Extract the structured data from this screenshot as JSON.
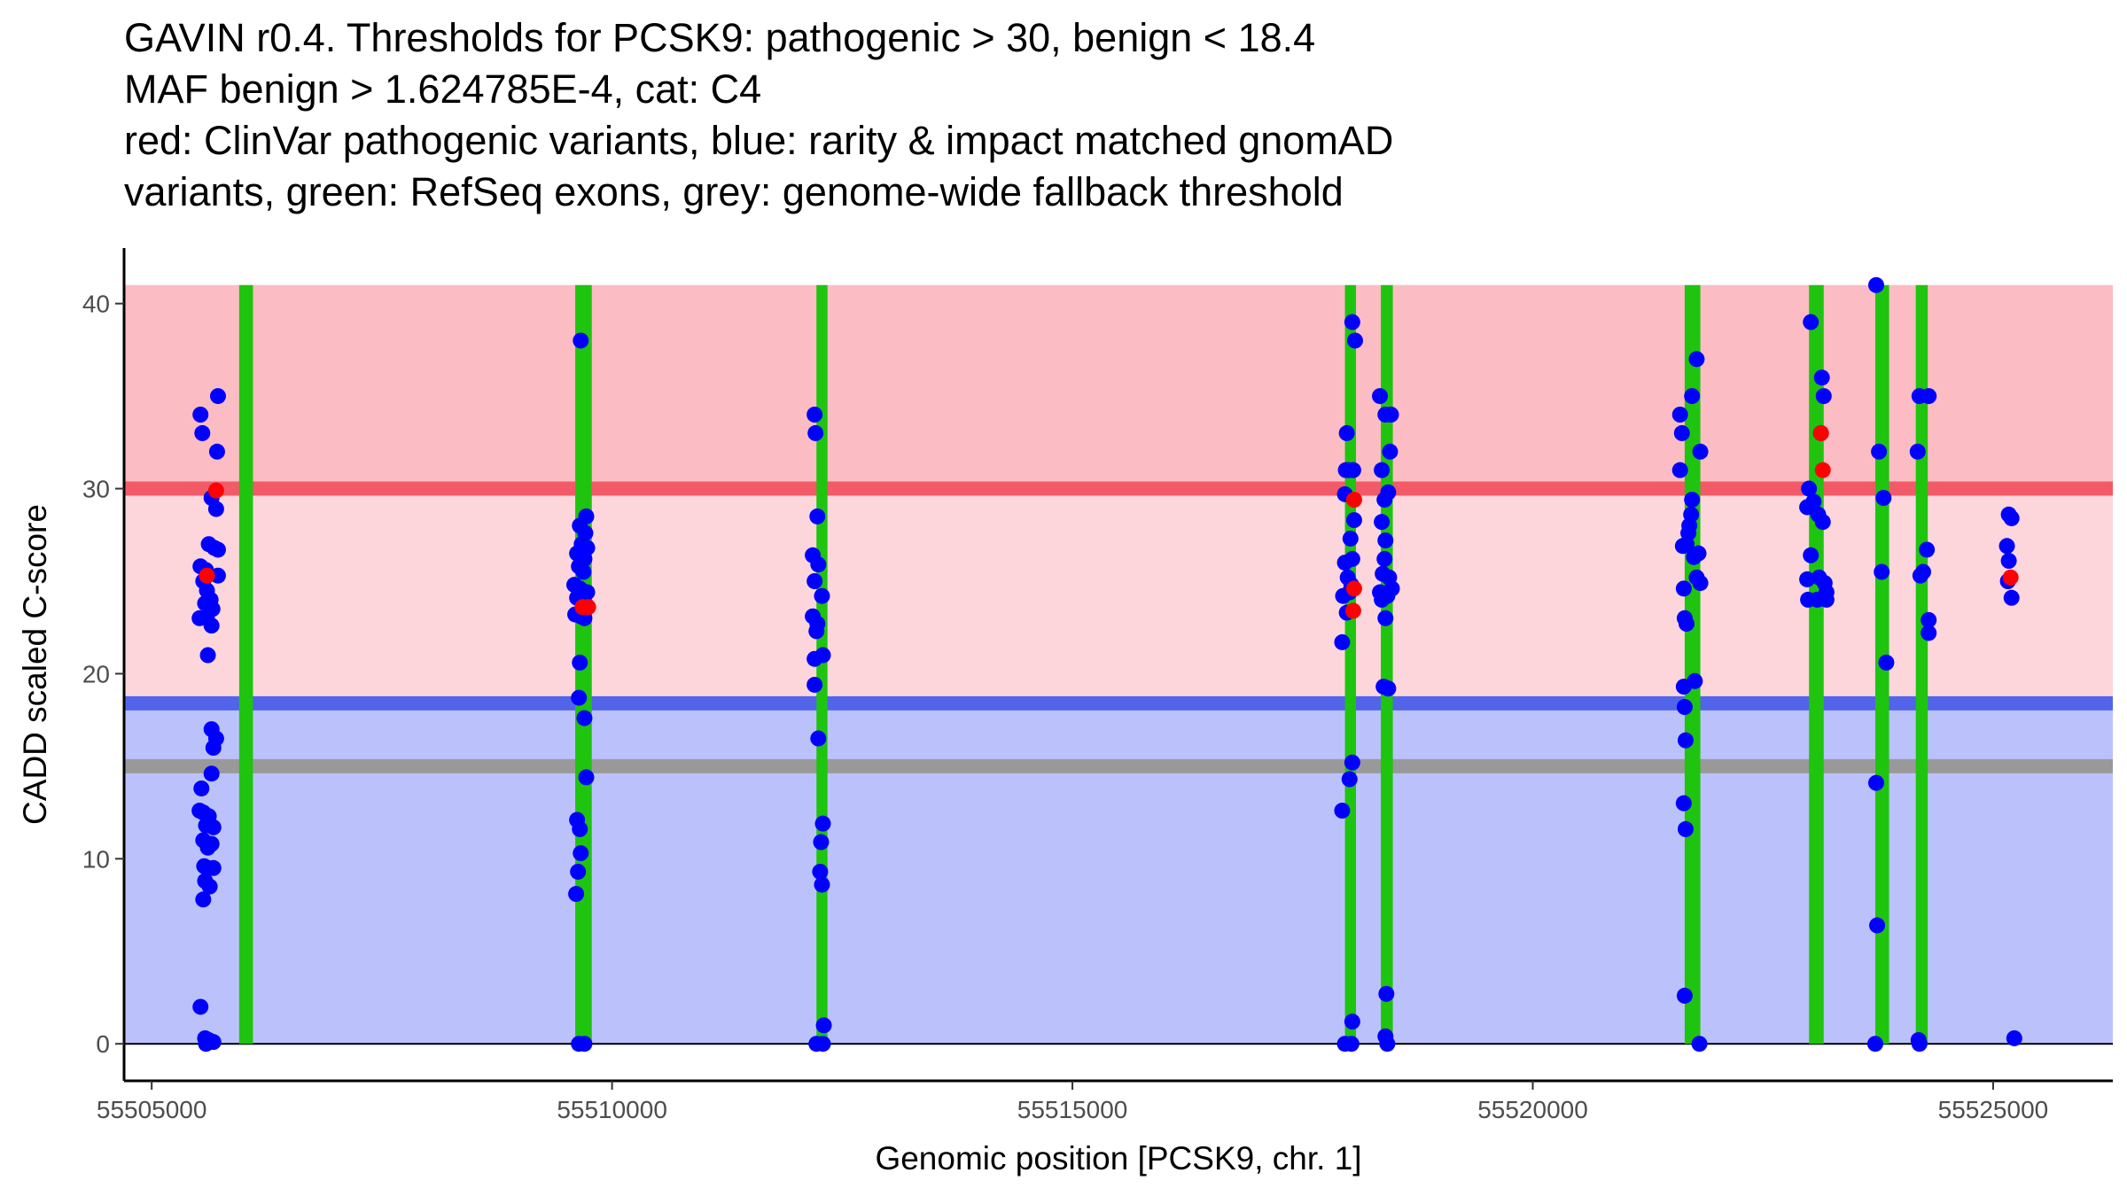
{
  "chart_data": {
    "type": "scatter",
    "title_lines": [
      "GAVIN r0.4. Thresholds for PCSK9: pathogenic > 30, benign < 18.4",
      "MAF benign > 1.624785E-4, cat: C4",
      "red: ClinVar pathogenic variants, blue: rarity & impact matched gnomAD",
      "variants, green: RefSeq exons, grey: genome-wide fallback threshold"
    ],
    "xlabel": "Genomic position [PCSK9, chr. 1]",
    "ylabel": "CADD scaled C-score",
    "xlim": [
      55504700,
      55526300
    ],
    "ylim": [
      -2,
      43
    ],
    "x_ticks": [
      55505000,
      55510000,
      55515000,
      55520000,
      55525000
    ],
    "x_tick_labels": [
      "55505000",
      "55510000",
      "55515000",
      "55520000",
      "55525000"
    ],
    "y_ticks": [
      0,
      10,
      20,
      30,
      40
    ],
    "y_tick_labels": [
      "0",
      "10",
      "20",
      "30",
      "40"
    ],
    "thresholds": {
      "pathogenic": 30,
      "benign": 18.4,
      "fallback": 15,
      "max": 41
    },
    "colors": {
      "pathogenic_zone": "#fdd6dc",
      "pathogenic_top_zone": "#fcbcc3",
      "benign_zone": "#bbc2fb",
      "pathogenic_line": "#f35a68",
      "benign_line": "#5164ea",
      "fallback_line": "#999999",
      "exon": "#1fc40f",
      "gnomad": "#0000ff",
      "clinvar": "#ff0000"
    },
    "exons": [
      [
        55505950,
        55506100
      ],
      [
        55509600,
        55509780
      ],
      [
        55512220,
        55512340
      ],
      [
        55517960,
        55518080
      ],
      [
        55518350,
        55518480
      ],
      [
        55521650,
        55521820
      ],
      [
        55523000,
        55523160
      ],
      [
        55523720,
        55523870
      ],
      [
        55524160,
        55524290
      ]
    ],
    "series": [
      {
        "name": "gnomAD variants",
        "points": [
          [
            55505530,
            34
          ],
          [
            55505550,
            33
          ],
          [
            55505720,
            35
          ],
          [
            55505710,
            32
          ],
          [
            55505650,
            29.5
          ],
          [
            55505700,
            28.9
          ],
          [
            55505620,
            27
          ],
          [
            55505680,
            26.8
          ],
          [
            55505720,
            26.7
          ],
          [
            55505530,
            25.8
          ],
          [
            55505590,
            25.6
          ],
          [
            55505720,
            25.3
          ],
          [
            55505560,
            25
          ],
          [
            55505600,
            24.5
          ],
          [
            55505640,
            24
          ],
          [
            55505580,
            23.8
          ],
          [
            55505660,
            23.5
          ],
          [
            55505520,
            23
          ],
          [
            55505600,
            23
          ],
          [
            55505650,
            22.6
          ],
          [
            55505610,
            21
          ],
          [
            55505650,
            17
          ],
          [
            55505700,
            16.5
          ],
          [
            55505670,
            16
          ],
          [
            55505650,
            14.6
          ],
          [
            55505540,
            13.8
          ],
          [
            55505520,
            12.6
          ],
          [
            55505560,
            12.5
          ],
          [
            55505620,
            12.3
          ],
          [
            55505590,
            11.8
          ],
          [
            55505670,
            11.7
          ],
          [
            55505560,
            11
          ],
          [
            55505650,
            10.8
          ],
          [
            55505610,
            10.6
          ],
          [
            55505570,
            9.6
          ],
          [
            55505610,
            9.5
          ],
          [
            55505670,
            9.5
          ],
          [
            55505580,
            8.8
          ],
          [
            55505630,
            8.5
          ],
          [
            55505560,
            7.8
          ],
          [
            55505530,
            2
          ],
          [
            55505580,
            0.3
          ],
          [
            55505620,
            0.2
          ],
          [
            55505670,
            0.1
          ],
          [
            55505590,
            0
          ],
          [
            55509660,
            38
          ],
          [
            55509720,
            28.5
          ],
          [
            55509650,
            28
          ],
          [
            55509710,
            27.6
          ],
          [
            55509670,
            27
          ],
          [
            55509730,
            26.8
          ],
          [
            55509620,
            26.5
          ],
          [
            55509700,
            26.2
          ],
          [
            55509640,
            25.8
          ],
          [
            55509690,
            25.5
          ],
          [
            55509590,
            24.8
          ],
          [
            55509650,
            24.6
          ],
          [
            55509730,
            24.4
          ],
          [
            55509620,
            24.1
          ],
          [
            55509680,
            23.9
          ],
          [
            55509720,
            23.7
          ],
          [
            55509600,
            23.2
          ],
          [
            55509660,
            23.1
          ],
          [
            55509700,
            23
          ],
          [
            55509650,
            20.6
          ],
          [
            55509640,
            18.7
          ],
          [
            55509700,
            17.6
          ],
          [
            55509720,
            14.4
          ],
          [
            55509620,
            12.1
          ],
          [
            55509650,
            11.6
          ],
          [
            55509660,
            10.3
          ],
          [
            55509630,
            9.3
          ],
          [
            55509610,
            8.1
          ],
          [
            55509640,
            0
          ],
          [
            55509700,
            0
          ],
          [
            55512200,
            34
          ],
          [
            55512210,
            33
          ],
          [
            55512230,
            28.5
          ],
          [
            55512180,
            26.4
          ],
          [
            55512240,
            25.9
          ],
          [
            55512200,
            25
          ],
          [
            55512280,
            24.2
          ],
          [
            55512180,
            23.1
          ],
          [
            55512230,
            22.7
          ],
          [
            55512220,
            22.3
          ],
          [
            55512290,
            21
          ],
          [
            55512200,
            20.8
          ],
          [
            55512200,
            19.4
          ],
          [
            55512240,
            16.5
          ],
          [
            55512290,
            11.9
          ],
          [
            55512270,
            10.9
          ],
          [
            55512260,
            9.3
          ],
          [
            55512280,
            8.6
          ],
          [
            55512300,
            1
          ],
          [
            55512220,
            0
          ],
          [
            55512290,
            0
          ],
          [
            55518040,
            39
          ],
          [
            55518070,
            38
          ],
          [
            55517980,
            33
          ],
          [
            55517970,
            31
          ],
          [
            55518000,
            31
          ],
          [
            55518050,
            31
          ],
          [
            55517960,
            29.7
          ],
          [
            55518060,
            28.3
          ],
          [
            55518020,
            27.3
          ],
          [
            55517960,
            26
          ],
          [
            55518040,
            26.2
          ],
          [
            55517990,
            25.2
          ],
          [
            55518030,
            24.8
          ],
          [
            55517940,
            24.2
          ],
          [
            55518010,
            24.4
          ],
          [
            55517980,
            23.3
          ],
          [
            55517930,
            21.7
          ],
          [
            55518040,
            15.2
          ],
          [
            55518010,
            14.3
          ],
          [
            55517930,
            12.6
          ],
          [
            55518040,
            1.2
          ],
          [
            55517960,
            0
          ],
          [
            55518030,
            0
          ],
          [
            55518340,
            35
          ],
          [
            55518400,
            34
          ],
          [
            55518460,
            34
          ],
          [
            55518450,
            32
          ],
          [
            55518360,
            31
          ],
          [
            55518430,
            29.8
          ],
          [
            55518390,
            29.4
          ],
          [
            55518360,
            28.2
          ],
          [
            55518400,
            27.2
          ],
          [
            55518390,
            26.2
          ],
          [
            55518370,
            25.4
          ],
          [
            55518440,
            25.2
          ],
          [
            55518470,
            24.6
          ],
          [
            55518340,
            24.4
          ],
          [
            55518420,
            24.2
          ],
          [
            55518360,
            24
          ],
          [
            55518400,
            23
          ],
          [
            55518380,
            19.3
          ],
          [
            55518430,
            19.2
          ],
          [
            55518410,
            2.7
          ],
          [
            55518400,
            0.4
          ],
          [
            55518420,
            0
          ],
          [
            55521600,
            34
          ],
          [
            55521620,
            33
          ],
          [
            55521780,
            37
          ],
          [
            55521730,
            35
          ],
          [
            55521820,
            32
          ],
          [
            55521600,
            31
          ],
          [
            55521730,
            29.4
          ],
          [
            55521720,
            28.6
          ],
          [
            55521700,
            28
          ],
          [
            55521690,
            27.6
          ],
          [
            55521670,
            27
          ],
          [
            55521630,
            26.9
          ],
          [
            55521800,
            26.5
          ],
          [
            55521750,
            26.3
          ],
          [
            55521640,
            24.6
          ],
          [
            55521780,
            25.2
          ],
          [
            55521820,
            24.9
          ],
          [
            55521650,
            23
          ],
          [
            55521670,
            22.7
          ],
          [
            55521760,
            19.6
          ],
          [
            55521640,
            19.3
          ],
          [
            55521650,
            18.2
          ],
          [
            55521660,
            16.4
          ],
          [
            55521640,
            13
          ],
          [
            55521660,
            11.6
          ],
          [
            55521650,
            2.6
          ],
          [
            55521810,
            0
          ],
          [
            55523020,
            39
          ],
          [
            55523140,
            36
          ],
          [
            55523160,
            35
          ],
          [
            55523130,
            33
          ],
          [
            55523000,
            30
          ],
          [
            55523050,
            29.3
          ],
          [
            55522980,
            29
          ],
          [
            55523100,
            28.6
          ],
          [
            55523150,
            28.2
          ],
          [
            55523020,
            26.4
          ],
          [
            55522980,
            25.1
          ],
          [
            55523110,
            25.2
          ],
          [
            55523170,
            24.9
          ],
          [
            55523190,
            24.4
          ],
          [
            55522990,
            24
          ],
          [
            55523090,
            24
          ],
          [
            55523190,
            24
          ],
          [
            55523730,
            41
          ],
          [
            55523760,
            32
          ],
          [
            55523810,
            29.5
          ],
          [
            55523790,
            25.5
          ],
          [
            55523840,
            20.6
          ],
          [
            55523730,
            14.1
          ],
          [
            55523740,
            6.4
          ],
          [
            55523720,
            0
          ],
          [
            55524200,
            35
          ],
          [
            55524300,
            35
          ],
          [
            55524180,
            32
          ],
          [
            55524280,
            26.7
          ],
          [
            55524240,
            25.5
          ],
          [
            55524210,
            25.3
          ],
          [
            55524300,
            22.9
          ],
          [
            55524300,
            22.2
          ],
          [
            55524190,
            0.2
          ],
          [
            55524200,
            0
          ],
          [
            55525170,
            28.6
          ],
          [
            55525200,
            28.4
          ],
          [
            55525150,
            26.9
          ],
          [
            55525170,
            26.1
          ],
          [
            55525160,
            25
          ],
          [
            55525200,
            24.1
          ],
          [
            55525230,
            0.3
          ]
        ]
      },
      {
        "name": "ClinVar pathogenic variants",
        "points": [
          [
            55505700,
            29.9
          ],
          [
            55505600,
            25.3
          ],
          [
            55509680,
            23.6
          ],
          [
            55509740,
            23.6
          ],
          [
            55518060,
            29.4
          ],
          [
            55518060,
            24.6
          ],
          [
            55518050,
            23.4
          ],
          [
            55523130,
            33
          ],
          [
            55523150,
            31
          ],
          [
            55525190,
            25.2
          ]
        ]
      }
    ]
  }
}
